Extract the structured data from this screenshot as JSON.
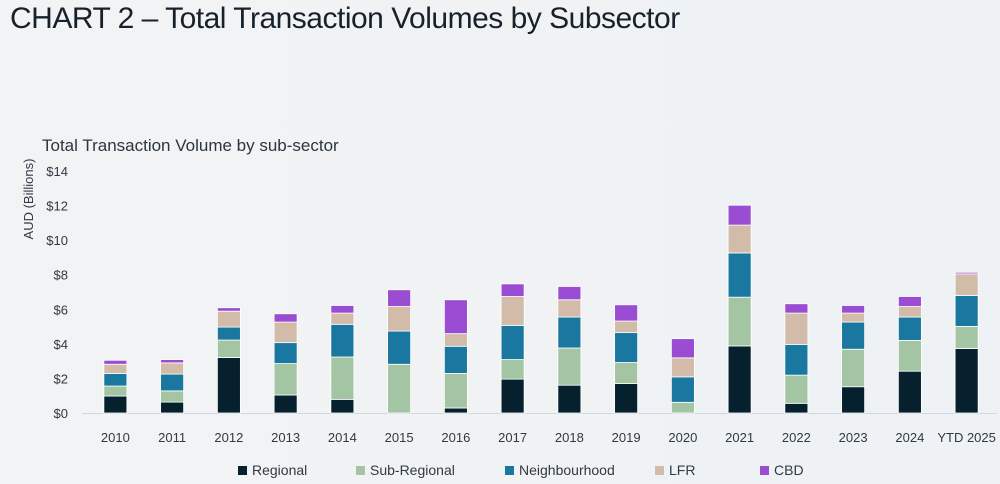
{
  "header": {
    "title": "CHART 2 – Total Transaction Volumes by Subsector"
  },
  "chart_data": {
    "type": "bar",
    "stacked": true,
    "title": "Total Transaction Volume by sub-sector",
    "xlabel": "",
    "ylabel": "AUD (Billions)",
    "ylim": [
      0,
      14
    ],
    "yticks": [
      0,
      2,
      4,
      6,
      8,
      10,
      12,
      14
    ],
    "ytick_labels": [
      "$0",
      "$2",
      "$4",
      "$6",
      "$8",
      "$10",
      "$12",
      "$14"
    ],
    "grid": false,
    "legend_position": "bottom",
    "categories": [
      "2010",
      "2011",
      "2012",
      "2013",
      "2014",
      "2015",
      "2016",
      "2017",
      "2018",
      "2019",
      "2020",
      "2021",
      "2022",
      "2023",
      "2024",
      "YTD 2025"
    ],
    "series": [
      {
        "name": "Regional",
        "color": "#06202d",
        "values": [
          0.98,
          0.63,
          3.21,
          1.04,
          0.79,
          0.0,
          0.29,
          1.96,
          1.61,
          1.71,
          0.0,
          3.88,
          0.56,
          1.52,
          2.42,
          3.73
        ]
      },
      {
        "name": "Sub-Regional",
        "color": "#a3c5a3",
        "values": [
          0.58,
          0.65,
          1.01,
          1.82,
          2.45,
          2.82,
          2.0,
          1.13,
          2.15,
          1.21,
          0.62,
          2.82,
          1.63,
          2.17,
          1.78,
          1.28
        ]
      },
      {
        "name": "Neighbourhood",
        "color": "#1a77a0",
        "values": [
          0.73,
          0.97,
          0.75,
          1.21,
          1.89,
          1.92,
          1.57,
          1.98,
          1.79,
          1.73,
          1.47,
          2.56,
          1.78,
          1.57,
          1.35,
          1.79
        ]
      },
      {
        "name": "LFR",
        "color": "#d3bba9",
        "values": [
          0.53,
          0.65,
          0.92,
          1.19,
          0.65,
          1.42,
          0.73,
          1.67,
          1.0,
          0.67,
          1.1,
          1.61,
          1.81,
          0.52,
          0.61,
          1.25
        ]
      },
      {
        "name": "CBD",
        "color": "#9a4dd2",
        "values": [
          0.23,
          0.19,
          0.2,
          0.48,
          0.44,
          0.97,
          1.96,
          0.73,
          0.77,
          0.94,
          1.11,
          1.15,
          0.54,
          0.44,
          0.58,
          0.09
        ]
      }
    ]
  }
}
